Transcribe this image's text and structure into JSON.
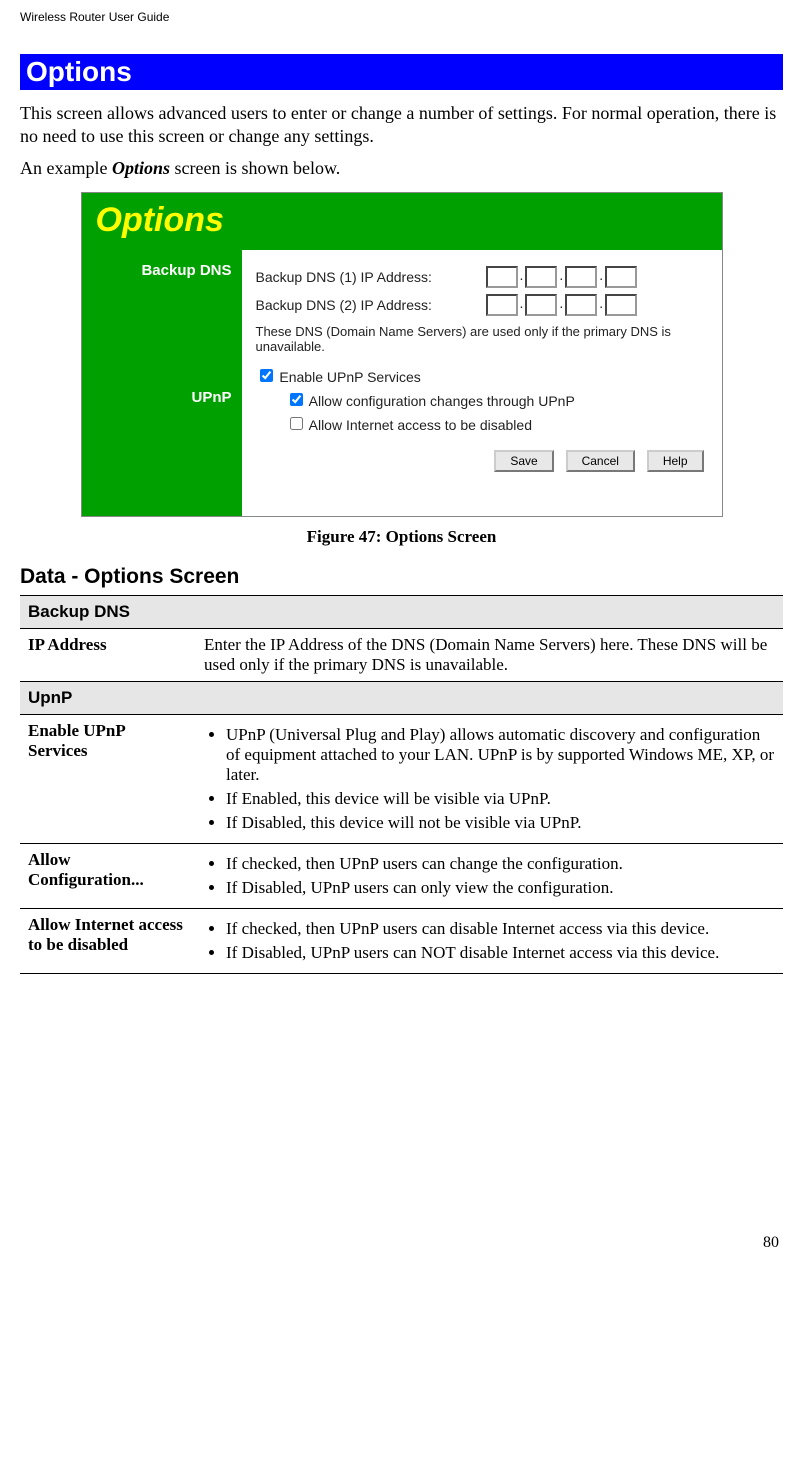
{
  "header": "Wireless Router User Guide",
  "blueBar": "Options",
  "para1": "This screen allows advanced users to enter or change a number of settings. For normal operation, there is no need to use this screen or change any settings.",
  "para2a": "An example ",
  "para2b": "Options",
  "para2c": " screen is shown below.",
  "shot": {
    "title": "Options",
    "side1": "Backup DNS",
    "side2": "UPnP",
    "dns1": "Backup DNS (1) IP Address:",
    "dns2": "Backup DNS (2) IP Address:",
    "dnsNote": "These DNS (Domain Name Servers) are used only if the primary DNS is unavailable.",
    "chk1": "Enable UPnP Services",
    "chk2": "Allow configuration changes through UPnP",
    "chk3": "Allow Internet access to be disabled",
    "btnSave": "Save",
    "btnCancel": "Cancel",
    "btnHelp": "Help"
  },
  "figureCaption": "Figure 47: Options Screen",
  "dataTitle": "Data - Options Screen",
  "table": {
    "sec1": "Backup DNS",
    "r1k": "IP Address",
    "r1v": "Enter the IP Address of the DNS (Domain Name Servers) here. These DNS will be used only if the primary DNS is unavailable.",
    "sec2": "UpnP",
    "r2k": "Enable UPnP Services",
    "r2b1": "UPnP (Universal Plug and Play) allows automatic discovery and configuration of equipment attached to your LAN. UPnP is by supported Windows ME, XP, or later.",
    "r2b2": "If Enabled, this device will be visible via UPnP.",
    "r2b3": "If Disabled, this device will not be visible via UPnP.",
    "r3k": "Allow Configuration...",
    "r3b1": "If checked, then UPnP users can change the configuration.",
    "r3b2": "If Disabled, UPnP users can only view the configuration.",
    "r4k": "Allow Internet access to be disabled",
    "r4b1": "If checked, then UPnP users can disable Internet access via this device.",
    "r4b2": "If Disabled, UPnP users can NOT disable Internet access via this device."
  },
  "pageNumber": "80"
}
